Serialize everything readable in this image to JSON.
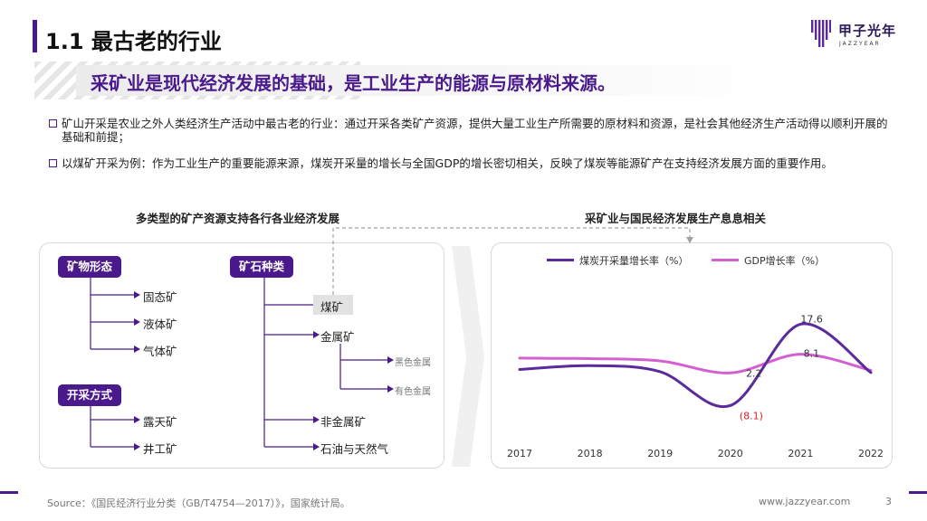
{
  "header": {
    "title": "1.1 最古老的行业",
    "logo_text": "甲子光年",
    "logo_sub": "JAZZYEAR"
  },
  "subtitle": "采矿业是现代经济发展的基础，是工业生产的能源与原材料来源。",
  "bullets": [
    "矿山开采是农业之外人类经济生产活动中最古老的行业：通过开采各类矿产资源，提供大量工业生产所需要的原材料和资源，是社会其他经济生产活动得以顺利开展的基础和前提；",
    "以煤矿开采为例：作为工业生产的重要能源来源，煤炭开采量的增长与全国GDP的增长密切相关，反映了煤炭等能源矿产在支持经济发展方面的重要作用。"
  ],
  "left_section": {
    "title": "多类型的矿产资源支持各行各业经济发展",
    "groups": {
      "form": {
        "label": "矿物形态",
        "items": [
          "固态矿",
          "液体矿",
          "气体矿"
        ]
      },
      "mining": {
        "label": "开采方式",
        "items": [
          "露天矿",
          "井工矿"
        ]
      },
      "type": {
        "label": "矿石种类",
        "items": [
          "煤矿",
          "金属矿",
          "非金属矿",
          "石油与天然气"
        ],
        "metal_sub": [
          "黑色金属",
          "有色金属"
        ]
      }
    }
  },
  "chart_data": {
    "type": "line",
    "title": "采矿业与国民经济发展生产息息相关",
    "x": [
      "2017",
      "2018",
      "2019",
      "2020",
      "2021",
      "2022"
    ],
    "series": [
      {
        "name": "煤炭开采量增长率（%）",
        "color": "#5b2a9c",
        "values": [
          3.3,
          4.5,
          2.6,
          -8.1,
          17.6,
          2.3
        ]
      },
      {
        "name": "GDP增长率（%）",
        "color": "#d45fd0",
        "values": [
          6.9,
          6.7,
          6.0,
          2.2,
          8.1,
          3.0
        ]
      }
    ],
    "data_labels": [
      {
        "series": 0,
        "index": 4,
        "text": "17.6"
      },
      {
        "series": 0,
        "index": 3,
        "text": "(8.1)",
        "color": "#e02020"
      },
      {
        "series": 1,
        "index": 4,
        "text": "8.1"
      },
      {
        "series": 1,
        "index": 3,
        "text": "2.2"
      }
    ],
    "legend_position": "top",
    "grid": false
  },
  "footer": {
    "source": "Source：《国民经济行业分类（GB/T4754—2017）》，国家统计局。",
    "url": "www.jazzyear.com",
    "page": "3"
  },
  "colors": {
    "accent": "#4a1a8c",
    "series1": "#5b2a9c",
    "series2": "#d45fd0",
    "negative": "#e02020"
  }
}
